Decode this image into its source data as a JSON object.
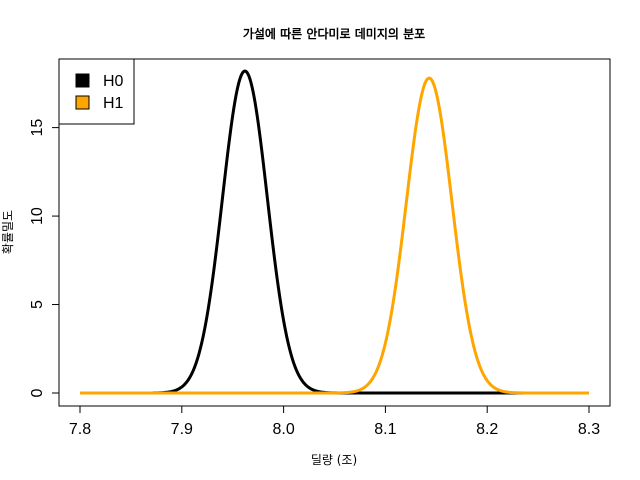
{
  "chart_data": {
    "type": "line",
    "title": "가설에 따른 안다미로 데미지의 분포",
    "xlabel": "딜량 (조)",
    "ylabel": "확률밀도",
    "xlim": [
      7.8,
      8.3
    ],
    "ylim": [
      0,
      18.2
    ],
    "x_ticks": [
      7.8,
      7.9,
      8.0,
      8.1,
      8.2,
      8.3
    ],
    "x_tick_labels": [
      "7.8",
      "7.9",
      "8.0",
      "8.1",
      "8.2",
      "8.3"
    ],
    "y_ticks": [
      0,
      5,
      10,
      15
    ],
    "y_tick_labels": [
      "0",
      "5",
      "10",
      "15"
    ],
    "legend_position": "top-left",
    "grid": false,
    "series": [
      {
        "name": "H0",
        "color": "#000000",
        "distribution": "normal",
        "mean": 7.962,
        "sd": 0.022,
        "peak": 18.2,
        "x_range": [
          7.8,
          8.3
        ]
      },
      {
        "name": "H1",
        "color": "#FFA500",
        "distribution": "normal",
        "mean": 8.143,
        "sd": 0.0224,
        "peak": 17.8,
        "x_range": [
          7.8,
          8.3
        ]
      }
    ]
  }
}
